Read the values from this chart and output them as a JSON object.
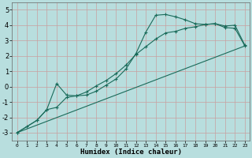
{
  "xlabel": "Humidex (Indice chaleur)",
  "bg_color": "#b8dede",
  "grid_color": "#c8a0a0",
  "line_color": "#1a6b5a",
  "xlim": [
    -0.5,
    23.5
  ],
  "ylim": [
    -3.5,
    5.5
  ],
  "xticks": [
    0,
    1,
    2,
    3,
    4,
    5,
    6,
    7,
    8,
    9,
    10,
    11,
    12,
    13,
    14,
    15,
    16,
    17,
    18,
    19,
    20,
    21,
    22,
    23
  ],
  "yticks": [
    -3,
    -2,
    -1,
    0,
    1,
    2,
    3,
    4,
    5
  ],
  "line1_x": [
    0,
    1,
    2,
    3,
    4,
    5,
    6,
    7,
    8,
    9,
    10,
    11,
    12,
    13,
    14,
    15,
    16,
    17,
    18,
    19,
    20,
    21,
    22,
    23
  ],
  "line1_y": [
    -3.0,
    -2.6,
    -2.2,
    -1.5,
    -1.35,
    -0.7,
    -0.6,
    -0.35,
    0.05,
    0.4,
    0.85,
    1.4,
    2.1,
    2.6,
    3.1,
    3.5,
    3.6,
    3.8,
    3.9,
    4.05,
    4.1,
    3.85,
    3.8,
    2.65
  ],
  "line2_x": [
    0,
    2,
    3,
    4,
    5,
    6,
    7,
    8,
    9,
    10,
    11,
    12,
    13,
    14,
    15,
    16,
    17,
    18,
    19,
    20,
    21,
    22,
    23
  ],
  "line2_y": [
    -3.0,
    -2.2,
    -1.5,
    0.2,
    -0.55,
    -0.6,
    -0.55,
    -0.3,
    0.1,
    0.5,
    1.15,
    2.15,
    3.55,
    4.65,
    4.7,
    4.55,
    4.35,
    4.1,
    4.05,
    4.1,
    3.95,
    4.0,
    2.7
  ],
  "line3_x": [
    0,
    23
  ],
  "line3_y": [
    -3.0,
    2.65
  ]
}
